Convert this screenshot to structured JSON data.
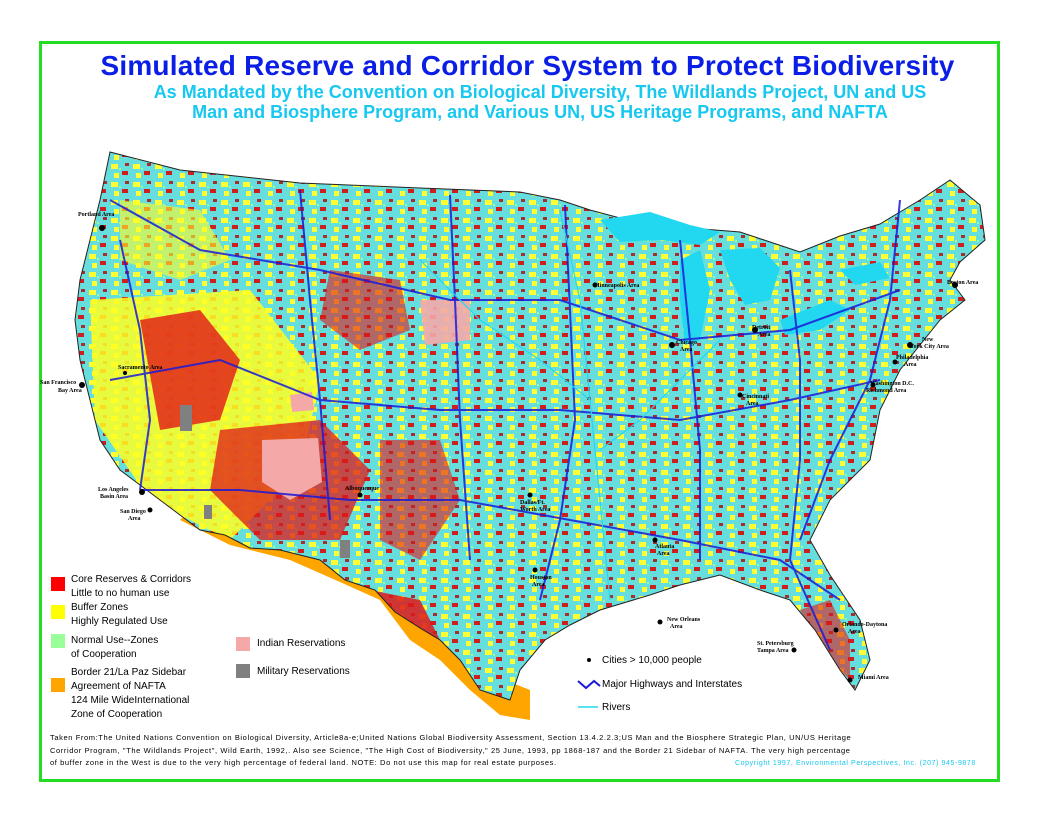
{
  "title": "Simulated Reserve and Corridor System to Protect Biodiversity",
  "subtitle_line1": "As Mandated by the Convention on Biological Diversity, The Wildlands Project, UN and US",
  "subtitle_line2": "Man and Biosphere Program, and Various UN, US Heritage Programs, and NAFTA",
  "colors": {
    "frame": "#22dd22",
    "title": "#0a1ee6",
    "subtitle": "#17c8f0",
    "core": "#ff0000",
    "buffer": "#ffff00",
    "normal": "#99ff99",
    "border21": "#ffa500",
    "indian": "#f4a8a8",
    "military": "#808080",
    "water": "#22d8f0",
    "highway": "#1a1ad8"
  },
  "legend": {
    "core_line1": "Core Reserves & Corridors",
    "core_line2": "Little to no human use",
    "buffer_line1": "Buffer Zones",
    "buffer_line2": "Highly Regulated Use",
    "normal_line1": "Normal Use--Zones",
    "normal_line2": "of Cooperation",
    "border_line1": "Border 21/La Paz Sidebar",
    "border_line2": "Agreement of NAFTA",
    "border_line3": "124 Mile WideInternational",
    "border_line4": "Zone of Cooperation",
    "indian": "Indian Reservations",
    "military": "Military Reservations",
    "cities": "Cities > 10,000 people",
    "highways": "Major Highways and Interstates",
    "rivers": "Rivers"
  },
  "cities": {
    "portland": "Portland Area",
    "sanfrancisco_1": "San Francisco",
    "sanfrancisco_2": "Bay Area",
    "losangeles_1": "Los Angeles",
    "losangeles_2": "Basin Area",
    "sandiego_1": "San Diego",
    "sandiego_2": "Area",
    "sacramento": "Sacramento Area",
    "boston": "Boston Area",
    "newyork_1": "New",
    "newyork_2": "York City Area",
    "philadelphia_1": "Philadelphia",
    "philadelphia_2": "Area",
    "washington_1": "Washington D.C.",
    "washington_2": "Richmond Area",
    "detroit_1": "Detroit",
    "detroit_2": "Area",
    "chicago_1": "Chicago",
    "chicago_2": "Area",
    "minneapolis": "Minneapolis Area",
    "cincinnati_1": "Cincinnati",
    "cincinnati_2": "Area",
    "albuquerque": "Albuquerque",
    "neworleans_1": "New Orleans",
    "neworleans_2": "Area",
    "miami": "Miami Area",
    "orlando_1": "Orlando-Daytona",
    "orlando_2": "Area",
    "stpetersburg_1": "St. Petersburg",
    "stpetersburg_2": "Tampa Area",
    "dallas_1": "Dallas/Ft.",
    "dallas_2": "Worth Area",
    "houston_1": "Houston",
    "houston_2": "Area",
    "atlanta_1": "Atlanta",
    "atlanta_2": "Area"
  },
  "credits": {
    "line1": "Taken From:The United Nations Convention on Biological Diversity, Article8a-e;United Nations Global Biodiversity Assessment, Section 13.4.2.2.3;US Man and the Biosphere Strategic Plan, UN/US Heritage",
    "line2": "Corridor Program, \"The Wildlands Project\", Wild Earth, 1992,. Also see Science, \"The High Cost of Biodiversity,\" 25 June, 1993, pp 1868-187 and the Border 21 Sidebar of NAFTA. The very high percentage",
    "line3": "of buffer zone in the West is due to the very high percentage of federal land. NOTE: Do not use this map for real estate purposes.",
    "copyright": "Copyright 1997, Environmental Perspectives, Inc. (207) 945-9878"
  }
}
